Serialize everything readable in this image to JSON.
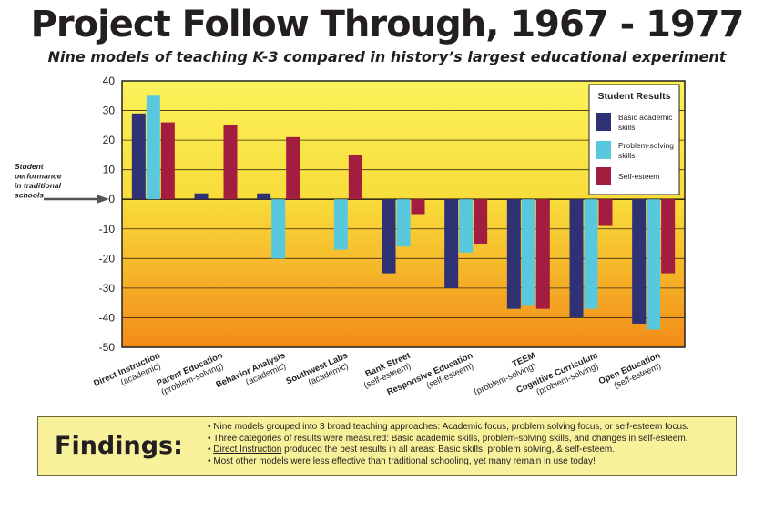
{
  "header": {
    "title": "Project Follow Through, 1967 - 1977",
    "subtitle": "Nine models of teaching K-3 compared in history’s largest educational experiment"
  },
  "chart_data": {
    "type": "bar",
    "ylim": [
      -50,
      40
    ],
    "y_ticks": [
      "40",
      "30",
      "20",
      "10",
      "0",
      "-10",
      "-20",
      "-30",
      "-40",
      "-50"
    ],
    "grid": true,
    "legend_position": "top-right",
    "legend_title": "Student Results",
    "baseline_note": [
      "Student",
      "performance",
      "in traditional",
      "schools"
    ],
    "categories": [
      [
        "Direct Instruction",
        "(academic)"
      ],
      [
        "Parent Education",
        "(problem-solving)"
      ],
      [
        "Behavior Analysis",
        "(academic)"
      ],
      [
        "Southwest Labs",
        "(academic)"
      ],
      [
        "Bank Street",
        "(self-esteem)"
      ],
      [
        "Responsive Education",
        "(self-esteem)"
      ],
      [
        "TEEM",
        "(problem-solving)"
      ],
      [
        "Cognitive Curriculum",
        "(problem-solving)"
      ],
      [
        "Open Education",
        "(self-esteem)"
      ]
    ],
    "series": [
      {
        "name": "Basic academic skills",
        "color": "#2e3275",
        "values": [
          29,
          2,
          2,
          0,
          -25,
          -30,
          -37,
          -40,
          -42
        ]
      },
      {
        "name": "Problem-solving skills",
        "color": "#58c8de",
        "values": [
          35,
          0,
          -20,
          -17,
          -16,
          -18,
          -36,
          -37,
          -44
        ]
      },
      {
        "name": "Self-esteem",
        "color": "#a31d40",
        "values": [
          26,
          25,
          21,
          15,
          -5,
          -15,
          -37,
          -9,
          -25
        ]
      }
    ],
    "legend_labels": [
      [
        "Basic academic",
        "skills"
      ],
      [
        "Problem-solving",
        "skills"
      ],
      [
        "Self-esteem"
      ]
    ]
  },
  "findings": {
    "label": "Findings:",
    "items": [
      {
        "plain_before": "",
        "underlined": "",
        "plain_after": "Nine models grouped into 3 broad teaching approaches:  Academic focus, problem solving focus, or self-esteem focus."
      },
      {
        "plain_before": "",
        "underlined": "",
        "plain_after": "Three categories of results were measured:  Basic academic skills, problem-solving skills, and changes in self-esteem."
      },
      {
        "plain_before": "",
        "underlined": "Direct Instruction",
        "plain_after": " produced the best results in all areas:  Basic skills, problem solving, & self-esteem."
      },
      {
        "plain_before": "",
        "underlined": "Most other models were less effective than traditional schooling",
        "plain_after": ", yet many remain in use today!"
      }
    ]
  }
}
